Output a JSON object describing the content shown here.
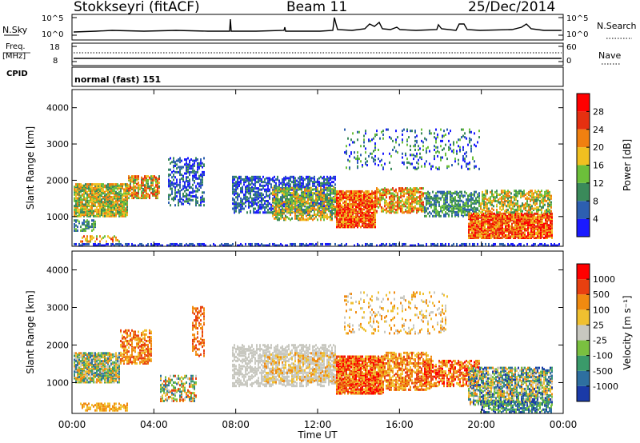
{
  "header": {
    "station": "Stokkseyri (fitACF)",
    "beam": "Beam 11",
    "date": "25/Dec/2014"
  },
  "noise_panel": {
    "left_label": "N.Sky",
    "right_label": "N.Search",
    "left_ticks": [
      "10^5",
      "10^0"
    ],
    "right_ticks": [
      "10^5",
      "10^0"
    ]
  },
  "freq_panel": {
    "left_label_line1": "Freq.",
    "left_label_line2": "[MHz]",
    "right_label": "Nave",
    "left_ticks": [
      "18",
      "8"
    ],
    "right_ticks": [
      "60",
      "0"
    ]
  },
  "cpid_panel": {
    "label": "CPID",
    "value": "normal (fast) 151"
  },
  "chart_data": [
    {
      "type": "heatmap",
      "title": "",
      "xlabel": "",
      "ylabel": "Slant Range [km]",
      "colorbar_label": "Power [dB]",
      "colorbar_ticks": [
        "4",
        "8",
        "12",
        "16",
        "20",
        "24",
        "28"
      ],
      "colorbar_colors": [
        "#1a1aff",
        "#2d5fb0",
        "#3a8a5a",
        "#6cbf3a",
        "#f0c020",
        "#f08010",
        "#e53010",
        "#ff0000"
      ],
      "y_ticks": [
        "1000",
        "2000",
        "3000",
        "4000"
      ],
      "ylim": [
        180,
        4500
      ],
      "x_ticks": [
        "00:00",
        "04:00",
        "08:00",
        "12:00",
        "16:00",
        "20:00",
        "00:00"
      ]
    },
    {
      "type": "heatmap",
      "title": "",
      "xlabel": "Time UT",
      "ylabel": "Slant Range [km]",
      "colorbar_label": "Velocity [m s⁻¹]",
      "colorbar_ticks": [
        "1000",
        "500",
        "100",
        "25",
        "-25",
        "-100",
        "-500",
        "-1000"
      ],
      "colorbar_colors": [
        "#1a3aa8",
        "#2e6fa0",
        "#3a9a6a",
        "#7ac040",
        "#c8c8c0",
        "#f0c030",
        "#f08a10",
        "#e84010",
        "#ff0000"
      ],
      "y_ticks": [
        "1000",
        "2000",
        "3000",
        "4000"
      ],
      "ylim": [
        180,
        4500
      ],
      "x_ticks": [
        "00:00",
        "04:00",
        "08:00",
        "12:00",
        "16:00",
        "20:00",
        "00:00"
      ]
    }
  ]
}
